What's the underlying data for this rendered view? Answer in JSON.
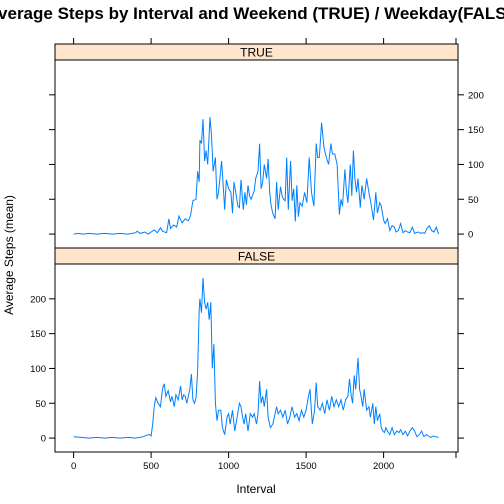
{
  "chart_data": {
    "type": "line",
    "title": "Average Steps by Interval and Weekend (TRUE) / Weekday(FALSE)",
    "xlabel": "Interval",
    "ylabel": "Average Steps (mean)",
    "xlim": [
      -120,
      2480
    ],
    "ylim": [
      -20,
      250
    ],
    "x_ticks": [
      0,
      500,
      1000,
      1500,
      2000
    ],
    "y_ticks": [
      0,
      50,
      100,
      150,
      200
    ],
    "line_color": "#0080ff",
    "strip_color": "#ffe5cc",
    "panels": [
      {
        "label": "TRUE",
        "points": [
          [
            0,
            0
          ],
          [
            30,
            1
          ],
          [
            60,
            0
          ],
          [
            100,
            1
          ],
          [
            150,
            0
          ],
          [
            200,
            1
          ],
          [
            250,
            0
          ],
          [
            300,
            1
          ],
          [
            350,
            0
          ],
          [
            400,
            2
          ],
          [
            410,
            4
          ],
          [
            430,
            1
          ],
          [
            460,
            3
          ],
          [
            480,
            0
          ],
          [
            500,
            3
          ],
          [
            520,
            6
          ],
          [
            540,
            2
          ],
          [
            560,
            9
          ],
          [
            575,
            4
          ],
          [
            600,
            2
          ],
          [
            615,
            22
          ],
          [
            625,
            8
          ],
          [
            645,
            13
          ],
          [
            665,
            10
          ],
          [
            680,
            26
          ],
          [
            700,
            16
          ],
          [
            720,
            22
          ],
          [
            740,
            19
          ],
          [
            755,
            27
          ],
          [
            770,
            48
          ],
          [
            790,
            50
          ],
          [
            800,
            90
          ],
          [
            810,
            75
          ],
          [
            815,
            135
          ],
          [
            825,
            130
          ],
          [
            835,
            165
          ],
          [
            845,
            105
          ],
          [
            855,
            120
          ],
          [
            865,
            100
          ],
          [
            880,
            168
          ],
          [
            890,
            140
          ],
          [
            900,
            90
          ],
          [
            915,
            110
          ],
          [
            925,
            50
          ],
          [
            935,
            60
          ],
          [
            955,
            105
          ],
          [
            965,
            70
          ],
          [
            975,
            35
          ],
          [
            985,
            78
          ],
          [
            1000,
            65
          ],
          [
            1015,
            60
          ],
          [
            1025,
            30
          ],
          [
            1035,
            75
          ],
          [
            1050,
            55
          ],
          [
            1060,
            40
          ],
          [
            1070,
            38
          ],
          [
            1080,
            78
          ],
          [
            1095,
            35
          ],
          [
            1105,
            60
          ],
          [
            1115,
            42
          ],
          [
            1125,
            70
          ],
          [
            1135,
            55
          ],
          [
            1145,
            50
          ],
          [
            1165,
            62
          ],
          [
            1175,
            80
          ],
          [
            1190,
            90
          ],
          [
            1200,
            130
          ],
          [
            1210,
            65
          ],
          [
            1220,
            75
          ],
          [
            1230,
            100
          ],
          [
            1245,
            80
          ],
          [
            1255,
            108
          ],
          [
            1265,
            60
          ],
          [
            1275,
            40
          ],
          [
            1285,
            30
          ],
          [
            1300,
            22
          ],
          [
            1310,
            75
          ],
          [
            1320,
            35
          ],
          [
            1335,
            68
          ],
          [
            1345,
            55
          ],
          [
            1355,
            50
          ],
          [
            1365,
            48
          ],
          [
            1375,
            110
          ],
          [
            1385,
            35
          ],
          [
            1400,
            105
          ],
          [
            1410,
            48
          ],
          [
            1420,
            65
          ],
          [
            1430,
            18
          ],
          [
            1440,
            70
          ],
          [
            1450,
            25
          ],
          [
            1460,
            45
          ],
          [
            1475,
            40
          ],
          [
            1490,
            60
          ],
          [
            1505,
            45
          ],
          [
            1520,
            110
          ],
          [
            1535,
            60
          ],
          [
            1550,
            40
          ],
          [
            1565,
            130
          ],
          [
            1575,
            110
          ],
          [
            1585,
            110
          ],
          [
            1600,
            160
          ],
          [
            1615,
            125
          ],
          [
            1630,
            110
          ],
          [
            1645,
            100
          ],
          [
            1660,
            130
          ],
          [
            1670,
            115
          ],
          [
            1685,
            115
          ],
          [
            1700,
            100
          ],
          [
            1715,
            28
          ],
          [
            1725,
            50
          ],
          [
            1735,
            40
          ],
          [
            1750,
            93
          ],
          [
            1760,
            62
          ],
          [
            1770,
            45
          ],
          [
            1785,
            100
          ],
          [
            1795,
            55
          ],
          [
            1805,
            120
          ],
          [
            1815,
            80
          ],
          [
            1825,
            60
          ],
          [
            1835,
            80
          ],
          [
            1850,
            38
          ],
          [
            1860,
            70
          ],
          [
            1875,
            50
          ],
          [
            1890,
            80
          ],
          [
            1905,
            60
          ],
          [
            1920,
            42
          ],
          [
            1935,
            20
          ],
          [
            1950,
            60
          ],
          [
            1960,
            30
          ],
          [
            1975,
            45
          ],
          [
            1985,
            40
          ],
          [
            2000,
            20
          ],
          [
            2010,
            15
          ],
          [
            2025,
            22
          ],
          [
            2040,
            5
          ],
          [
            2055,
            12
          ],
          [
            2070,
            10
          ],
          [
            2080,
            3
          ],
          [
            2095,
            5
          ],
          [
            2110,
            15
          ],
          [
            2125,
            2
          ],
          [
            2140,
            5
          ],
          [
            2155,
            3
          ],
          [
            2170,
            2
          ],
          [
            2185,
            10
          ],
          [
            2200,
            1
          ],
          [
            2210,
            2
          ],
          [
            2225,
            3
          ],
          [
            2240,
            1
          ],
          [
            2250,
            2
          ],
          [
            2265,
            1
          ],
          [
            2280,
            8
          ],
          [
            2295,
            12
          ],
          [
            2310,
            5
          ],
          [
            2325,
            3
          ],
          [
            2340,
            10
          ],
          [
            2350,
            3
          ],
          [
            2355,
            0
          ]
        ]
      },
      {
        "label": "FALSE",
        "points": [
          [
            0,
            2
          ],
          [
            50,
            1
          ],
          [
            100,
            0
          ],
          [
            150,
            1
          ],
          [
            200,
            0
          ],
          [
            250,
            1
          ],
          [
            300,
            0
          ],
          [
            350,
            1
          ],
          [
            400,
            0
          ],
          [
            450,
            2
          ],
          [
            470,
            4
          ],
          [
            490,
            5
          ],
          [
            500,
            3
          ],
          [
            510,
            20
          ],
          [
            520,
            45
          ],
          [
            530,
            58
          ],
          [
            545,
            50
          ],
          [
            560,
            45
          ],
          [
            575,
            72
          ],
          [
            585,
            78
          ],
          [
            595,
            60
          ],
          [
            610,
            68
          ],
          [
            625,
            52
          ],
          [
            635,
            60
          ],
          [
            650,
            45
          ],
          [
            660,
            62
          ],
          [
            675,
            55
          ],
          [
            690,
            75
          ],
          [
            700,
            55
          ],
          [
            710,
            62
          ],
          [
            720,
            60
          ],
          [
            730,
            50
          ],
          [
            740,
            60
          ],
          [
            750,
            70
          ],
          [
            760,
            92
          ],
          [
            770,
            55
          ],
          [
            780,
            50
          ],
          [
            790,
            58
          ],
          [
            800,
            95
          ],
          [
            810,
            185
          ],
          [
            815,
            200
          ],
          [
            825,
            180
          ],
          [
            835,
            230
          ],
          [
            845,
            195
          ],
          [
            855,
            185
          ],
          [
            865,
            195
          ],
          [
            875,
            170
          ],
          [
            885,
            195
          ],
          [
            895,
            100
          ],
          [
            905,
            135
          ],
          [
            915,
            50
          ],
          [
            925,
            25
          ],
          [
            935,
            40
          ],
          [
            950,
            40
          ],
          [
            960,
            15
          ],
          [
            975,
            5
          ],
          [
            990,
            30
          ],
          [
            1000,
            35
          ],
          [
            1010,
            20
          ],
          [
            1025,
            40
          ],
          [
            1040,
            10
          ],
          [
            1055,
            30
          ],
          [
            1070,
            50
          ],
          [
            1080,
            45
          ],
          [
            1090,
            30
          ],
          [
            1100,
            20
          ],
          [
            1110,
            35
          ],
          [
            1125,
            10
          ],
          [
            1140,
            35
          ],
          [
            1155,
            30
          ],
          [
            1165,
            35
          ],
          [
            1180,
            20
          ],
          [
            1190,
            35
          ],
          [
            1200,
            82
          ],
          [
            1210,
            50
          ],
          [
            1220,
            60
          ],
          [
            1230,
            45
          ],
          [
            1245,
            70
          ],
          [
            1255,
            30
          ],
          [
            1270,
            15
          ],
          [
            1285,
            20
          ],
          [
            1300,
            35
          ],
          [
            1310,
            45
          ],
          [
            1320,
            35
          ],
          [
            1335,
            40
          ],
          [
            1350,
            30
          ],
          [
            1365,
            40
          ],
          [
            1380,
            20
          ],
          [
            1395,
            30
          ],
          [
            1410,
            45
          ],
          [
            1425,
            30
          ],
          [
            1440,
            35
          ],
          [
            1455,
            25
          ],
          [
            1470,
            40
          ],
          [
            1485,
            30
          ],
          [
            1500,
            40
          ],
          [
            1515,
            60
          ],
          [
            1525,
            70
          ],
          [
            1540,
            20
          ],
          [
            1555,
            40
          ],
          [
            1565,
            80
          ],
          [
            1575,
            45
          ],
          [
            1590,
            40
          ],
          [
            1605,
            50
          ],
          [
            1620,
            35
          ],
          [
            1635,
            55
          ],
          [
            1650,
            40
          ],
          [
            1665,
            60
          ],
          [
            1680,
            45
          ],
          [
            1695,
            55
          ],
          [
            1710,
            45
          ],
          [
            1725,
            55
          ],
          [
            1740,
            40
          ],
          [
            1755,
            55
          ],
          [
            1770,
            60
          ],
          [
            1780,
            85
          ],
          [
            1790,
            62
          ],
          [
            1800,
            50
          ],
          [
            1810,
            90
          ],
          [
            1820,
            70
          ],
          [
            1835,
            115
          ],
          [
            1845,
            70
          ],
          [
            1855,
            60
          ],
          [
            1865,
            45
          ],
          [
            1875,
            70
          ],
          [
            1890,
            40
          ],
          [
            1905,
            45
          ],
          [
            1915,
            30
          ],
          [
            1930,
            50
          ],
          [
            1940,
            20
          ],
          [
            1950,
            45
          ],
          [
            1960,
            25
          ],
          [
            1975,
            35
          ],
          [
            1985,
            15
          ],
          [
            1995,
            10
          ],
          [
            2005,
            8
          ],
          [
            2015,
            15
          ],
          [
            2025,
            10
          ],
          [
            2040,
            5
          ],
          [
            2055,
            15
          ],
          [
            2070,
            5
          ],
          [
            2085,
            10
          ],
          [
            2100,
            8
          ],
          [
            2110,
            12
          ],
          [
            2125,
            5
          ],
          [
            2140,
            10
          ],
          [
            2155,
            3
          ],
          [
            2170,
            10
          ],
          [
            2185,
            15
          ],
          [
            2200,
            10
          ],
          [
            2215,
            2
          ],
          [
            2230,
            5
          ],
          [
            2245,
            10
          ],
          [
            2260,
            2
          ],
          [
            2275,
            5
          ],
          [
            2290,
            3
          ],
          [
            2305,
            1
          ],
          [
            2320,
            3
          ],
          [
            2335,
            2
          ],
          [
            2355,
            1
          ]
        ]
      }
    ]
  }
}
